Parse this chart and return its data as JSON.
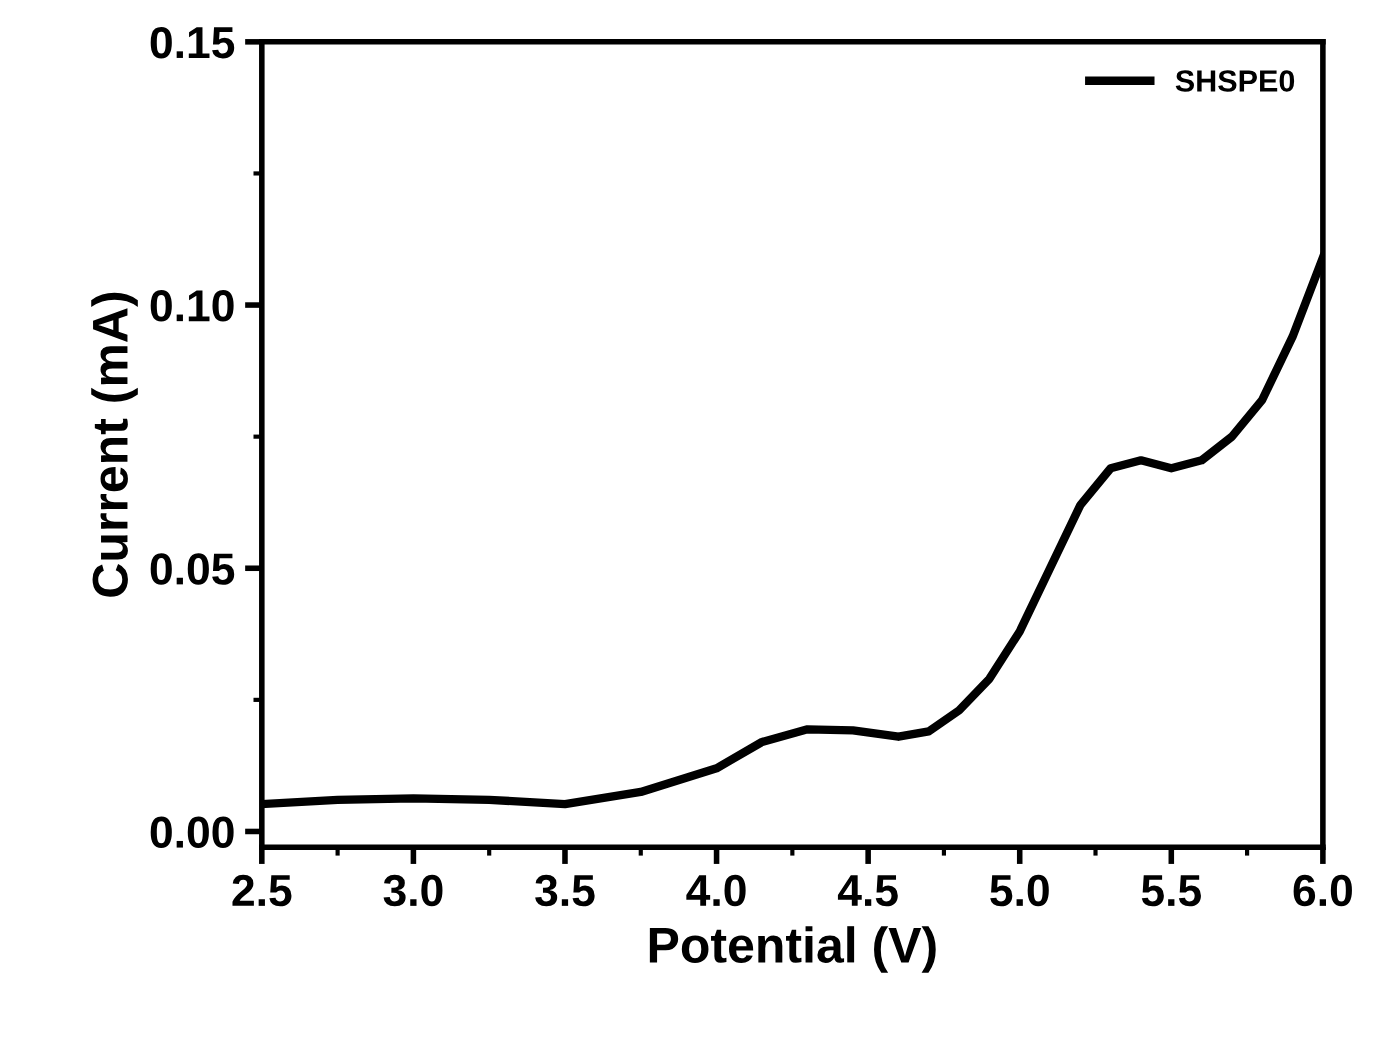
{
  "chart_data": {
    "type": "line",
    "xlabel": "Potential (V)",
    "ylabel": "Current (mA)",
    "xlim": [
      2.5,
      6.0
    ],
    "ylim": [
      -0.003,
      0.15
    ],
    "xticks": [
      2.5,
      {
        "value": 3,
        "label": "3.0"
      },
      3.5,
      {
        "value": 4,
        "label": "4.0"
      },
      4.5,
      {
        "value": 5,
        "label": "5.0"
      },
      5.5,
      {
        "value": 6,
        "label": "6.0"
      }
    ],
    "yticks": [
      {
        "value": 0,
        "label": "0.00"
      },
      {
        "value": 0.05,
        "label": "0.05"
      },
      {
        "value": 0.1,
        "label": "0.10"
      },
      {
        "value": 0.15,
        "label": "0.15"
      }
    ],
    "legend": "top right",
    "grid": false,
    "marker": "none",
    "line_style": "solid",
    "series": [
      {
        "name": "SHSPE0",
        "color": "#000000",
        "x": [
          2.5,
          2.75,
          3.0,
          3.25,
          3.5,
          3.75,
          4.0,
          4.15,
          4.3,
          4.45,
          4.6,
          4.7,
          4.8,
          4.9,
          5.0,
          5.1,
          5.2,
          5.3,
          5.4,
          5.5,
          5.6,
          5.7,
          5.8,
          5.9,
          6.0
        ],
        "values": [
          0.0052,
          0.006,
          0.0063,
          0.006,
          0.0052,
          0.0075,
          0.012,
          0.017,
          0.0194,
          0.0192,
          0.018,
          0.019,
          0.023,
          0.029,
          0.038,
          0.05,
          0.062,
          0.069,
          0.0705,
          0.069,
          0.0705,
          0.075,
          0.082,
          0.094,
          0.109
        ]
      }
    ]
  }
}
